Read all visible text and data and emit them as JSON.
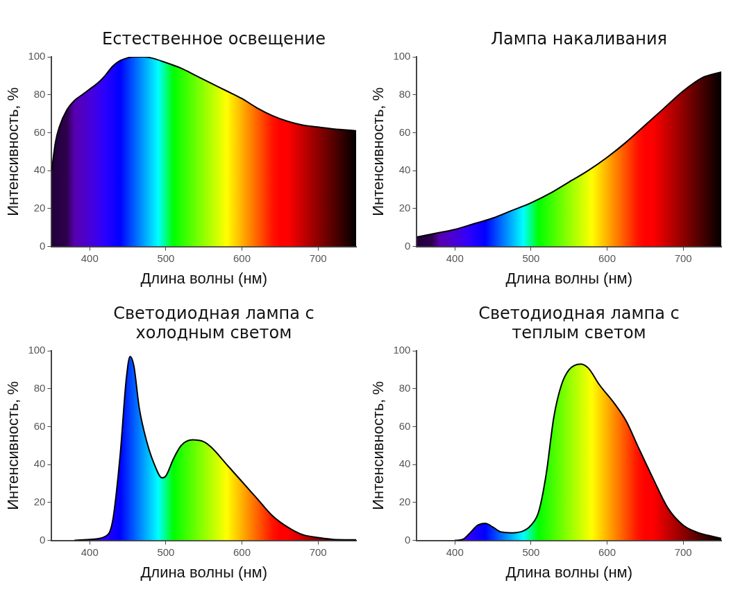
{
  "chart_data": [
    {
      "type": "area",
      "title": "Естественное освещение",
      "xlabel": "Длина волны (нм)",
      "ylabel": "Интенсивность, %",
      "xlim": [
        350,
        750
      ],
      "xticks": [
        400,
        500,
        600,
        700
      ],
      "ylim": [
        0,
        100
      ],
      "yticks": [
        0,
        20,
        40,
        60,
        80,
        100
      ],
      "grid": false,
      "legend": false,
      "series": [
        {
          "color": "#000000",
          "x": [
            350,
            355,
            360,
            370,
            380,
            390,
            400,
            410,
            420,
            430,
            440,
            450,
            460,
            470,
            480,
            500,
            520,
            540,
            560,
            580,
            600,
            620,
            640,
            660,
            680,
            700,
            720,
            750
          ],
          "values": [
            40,
            55,
            63,
            72,
            77,
            80,
            83,
            86,
            90,
            95,
            98,
            99.5,
            100,
            100,
            99.5,
            97,
            94,
            90,
            86,
            82,
            78,
            73,
            69,
            66,
            64,
            63,
            62,
            61
          ]
        }
      ]
    },
    {
      "type": "area",
      "title": "Лампа накаливания",
      "xlabel": "Длина волны (нм)",
      "ylabel": "Интенсивность, %",
      "xlim": [
        350,
        750
      ],
      "xticks": [
        400,
        500,
        600,
        700
      ],
      "ylim": [
        0,
        100
      ],
      "yticks": [
        0,
        20,
        40,
        60,
        80,
        100
      ],
      "grid": false,
      "legend": false,
      "series": [
        {
          "color": "#000000",
          "x": [
            350,
            375,
            400,
            425,
            450,
            475,
            500,
            525,
            550,
            575,
            600,
            625,
            650,
            675,
            700,
            725,
            750
          ],
          "values": [
            5,
            7,
            9,
            12,
            15,
            19,
            23,
            28,
            34,
            40,
            47,
            55,
            64,
            73,
            82,
            89,
            92
          ]
        }
      ]
    },
    {
      "type": "area",
      "title": "Светодиодная лампа с холодным светом",
      "xlabel": "Длина волны (нм)",
      "ylabel": "Интенсивность, %",
      "xlim": [
        350,
        750
      ],
      "xticks": [
        400,
        500,
        600,
        700
      ],
      "ylim": [
        0,
        100
      ],
      "yticks": [
        0,
        20,
        40,
        60,
        80,
        100
      ],
      "grid": false,
      "legend": false,
      "series": [
        {
          "color": "#000000",
          "x": [
            380,
            400,
            420,
            430,
            440,
            448,
            453,
            458,
            465,
            475,
            485,
            495,
            500,
            510,
            520,
            535,
            550,
            560,
            580,
            600,
            620,
            640,
            660,
            680,
            700,
            720,
            750
          ],
          "values": [
            0,
            0.5,
            2,
            10,
            45,
            85,
            97,
            92,
            70,
            52,
            40,
            33,
            34,
            43,
            50,
            53,
            52,
            49,
            40,
            31,
            22,
            13,
            7,
            3,
            1.5,
            0.5,
            0.3
          ]
        }
      ]
    },
    {
      "type": "area",
      "title": "Светодиодная лампа с теплым светом",
      "xlabel": "Длина волны (нм)",
      "ylabel": "Интенсивность, %",
      "xlim": [
        350,
        750
      ],
      "xticks": [
        400,
        500,
        600,
        700
      ],
      "ylim": [
        0,
        100
      ],
      "yticks": [
        0,
        20,
        40,
        60,
        80,
        100
      ],
      "grid": false,
      "legend": false,
      "series": [
        {
          "color": "#000000",
          "x": [
            400,
            410,
            420,
            430,
            440,
            450,
            460,
            475,
            490,
            500,
            510,
            520,
            530,
            540,
            550,
            565,
            575,
            590,
            610,
            625,
            640,
            660,
            680,
            700,
            720,
            740,
            750
          ],
          "values": [
            0,
            0.5,
            4,
            8,
            9,
            7,
            4.5,
            4,
            5,
            8,
            15,
            35,
            65,
            82,
            90,
            93,
            91,
            82,
            72,
            63,
            50,
            33,
            17,
            8,
            4,
            2,
            1
          ]
        }
      ]
    }
  ]
}
